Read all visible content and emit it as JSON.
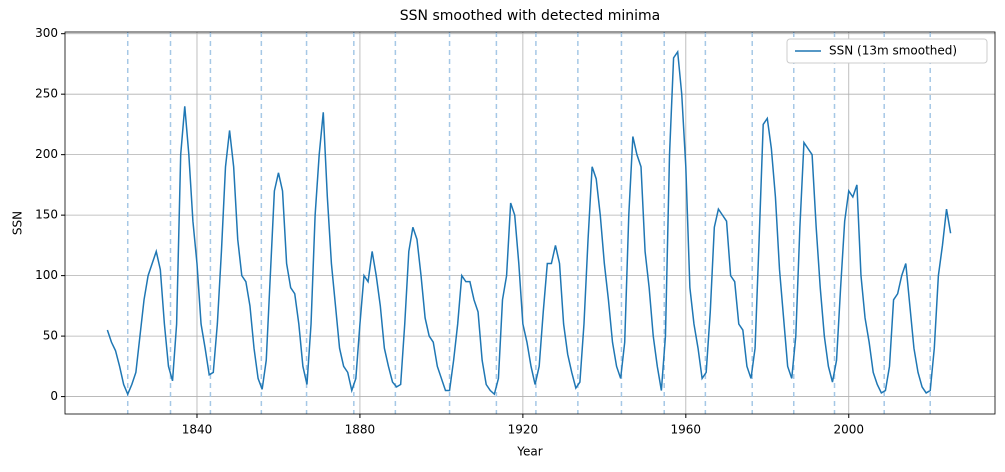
{
  "chart_data": {
    "type": "line",
    "title": "SSN smoothed with detected minima",
    "xlabel": "Year",
    "ylabel": "SSN",
    "x": [
      1818,
      1819,
      1820,
      1821,
      1822,
      1823,
      1824,
      1825,
      1826,
      1827,
      1828,
      1829,
      1830,
      1831,
      1832,
      1833,
      1834,
      1835,
      1836,
      1837,
      1838,
      1839,
      1840,
      1841,
      1842,
      1843,
      1844,
      1845,
      1846,
      1847,
      1848,
      1849,
      1850,
      1851,
      1852,
      1853,
      1854,
      1855,
      1856,
      1857,
      1858,
      1859,
      1860,
      1861,
      1862,
      1863,
      1864,
      1865,
      1866,
      1867,
      1868,
      1869,
      1870,
      1871,
      1872,
      1873,
      1874,
      1875,
      1876,
      1877,
      1878,
      1879,
      1880,
      1881,
      1882,
      1883,
      1884,
      1885,
      1886,
      1887,
      1888,
      1889,
      1890,
      1891,
      1892,
      1893,
      1894,
      1895,
      1896,
      1897,
      1898,
      1899,
      1900,
      1901,
      1902,
      1903,
      1904,
      1905,
      1906,
      1907,
      1908,
      1909,
      1910,
      1911,
      1912,
      1913,
      1914,
      1915,
      1916,
      1917,
      1918,
      1919,
      1920,
      1921,
      1922,
      1923,
      1924,
      1925,
      1926,
      1927,
      1928,
      1929,
      1930,
      1931,
      1932,
      1933,
      1934,
      1935,
      1936,
      1937,
      1938,
      1939,
      1940,
      1941,
      1942,
      1943,
      1944,
      1945,
      1946,
      1947,
      1948,
      1949,
      1950,
      1951,
      1952,
      1953,
      1954,
      1955,
      1956,
      1957,
      1958,
      1959,
      1960,
      1961,
      1962,
      1963,
      1964,
      1965,
      1966,
      1967,
      1968,
      1969,
      1970,
      1971,
      1972,
      1973,
      1974,
      1975,
      1976,
      1977,
      1978,
      1979,
      1980,
      1981,
      1982,
      1983,
      1984,
      1985,
      1986,
      1987,
      1988,
      1989,
      1990,
      1991,
      1992,
      1993,
      1994,
      1995,
      1996,
      1997,
      1998,
      1999,
      2000,
      2001,
      2002,
      2003,
      2004,
      2005,
      2006,
      2007,
      2008,
      2009,
      2010,
      2011,
      2012,
      2013,
      2014,
      2015,
      2016,
      2017,
      2018,
      2019,
      2020,
      2021,
      2022,
      2023,
      2024,
      2025
    ],
    "series": [
      {
        "name": "SSN (13m smoothed)",
        "color": "#1f77b4",
        "values": [
          55,
          45,
          38,
          25,
          10,
          2,
          10,
          20,
          50,
          80,
          100,
          110,
          120,
          105,
          60,
          25,
          13,
          60,
          200,
          240,
          200,
          145,
          110,
          60,
          40,
          18,
          20,
          60,
          120,
          190,
          220,
          190,
          130,
          100,
          95,
          75,
          40,
          15,
          6,
          30,
          100,
          170,
          185,
          170,
          110,
          90,
          85,
          60,
          25,
          10,
          60,
          150,
          200,
          235,
          165,
          110,
          75,
          40,
          25,
          20,
          5,
          15,
          60,
          100,
          95,
          120,
          100,
          75,
          40,
          25,
          12,
          8,
          10,
          60,
          120,
          140,
          130,
          100,
          65,
          50,
          45,
          25,
          15,
          5,
          5,
          30,
          60,
          100,
          95,
          95,
          80,
          70,
          30,
          10,
          5,
          2,
          15,
          80,
          100,
          160,
          150,
          110,
          60,
          45,
          25,
          10,
          25,
          70,
          110,
          110,
          125,
          110,
          60,
          35,
          20,
          7,
          12,
          60,
          130,
          190,
          180,
          150,
          110,
          80,
          45,
          25,
          15,
          45,
          150,
          215,
          200,
          190,
          120,
          90,
          50,
          25,
          5,
          50,
          200,
          280,
          285,
          250,
          190,
          90,
          60,
          40,
          15,
          20,
          70,
          140,
          155,
          150,
          145,
          100,
          95,
          60,
          55,
          25,
          15,
          40,
          130,
          225,
          230,
          205,
          165,
          105,
          65,
          25,
          15,
          50,
          140,
          210,
          205,
          200,
          140,
          90,
          50,
          25,
          12,
          30,
          90,
          145,
          170,
          165,
          175,
          100,
          65,
          45,
          20,
          10,
          3,
          5,
          25,
          80,
          85,
          100,
          110,
          75,
          40,
          20,
          8,
          3,
          5,
          40,
          100,
          125,
          155,
          135
        ]
      }
    ],
    "minima": [
      1823.0,
      1833.5,
      1843.3,
      1855.8,
      1866.9,
      1878.5,
      1888.7,
      1902.0,
      1913.5,
      1923.2,
      1933.5,
      1944.2,
      1954.7,
      1964.8,
      1976.3,
      1986.5,
      1996.5,
      2008.7,
      2020.0
    ],
    "minima_color": "#a6c8e6",
    "xlim": [
      1807.6,
      2035.9
    ],
    "ylim": [
      -14.4,
      301.4
    ],
    "xticks": [
      1840,
      1880,
      1920,
      1960,
      2000
    ],
    "yticks": [
      0,
      50,
      100,
      150,
      200,
      250,
      300
    ],
    "grid": true,
    "legend": "upper right"
  }
}
